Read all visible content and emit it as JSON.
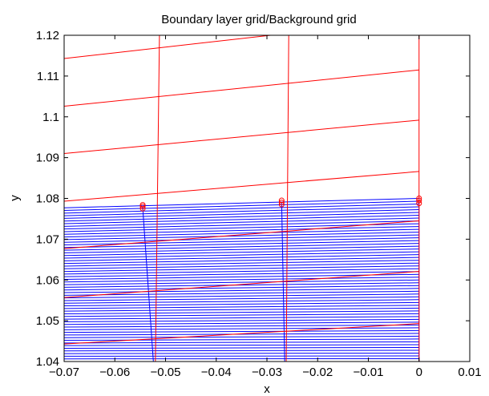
{
  "chart_data": {
    "type": "line",
    "title": "Boundary layer grid/Background grid",
    "xlabel": "x",
    "ylabel": "y",
    "xlim": [
      -0.07,
      0.01
    ],
    "ylim": [
      1.04,
      1.12
    ],
    "x_ticks": [
      "−0.07",
      "−0.06",
      "−0.05",
      "−0.04",
      "−0.03",
      "−0.02",
      "−0.01",
      "0",
      "0.01"
    ],
    "x_tick_values": [
      -0.07,
      -0.06,
      -0.05,
      -0.04,
      -0.03,
      -0.02,
      -0.01,
      0,
      0.01
    ],
    "y_ticks": [
      "1.04",
      "1.05",
      "1.06",
      "1.07",
      "1.08",
      "1.09",
      "1.1",
      "1.11",
      "1.12"
    ],
    "y_tick_values": [
      1.04,
      1.05,
      1.06,
      1.07,
      1.08,
      1.09,
      1.1,
      1.11,
      1.12
    ],
    "grid": false,
    "series": [
      {
        "color": "#ff0000",
        "role": "background-grid-horizontal",
        "lines": [
          [
            [
              -0.07,
              1.0443
            ],
            [
              0,
              1.0493
            ]
          ],
          [
            [
              -0.07,
              1.0557
            ],
            [
              0,
              1.0621
            ]
          ],
          [
            [
              -0.07,
              1.0677
            ],
            [
              0,
              1.0745
            ]
          ],
          [
            [
              -0.07,
              1.0793
            ],
            [
              0,
              1.0866
            ]
          ],
          [
            [
              -0.07,
              1.091
            ],
            [
              0,
              1.0992
            ]
          ],
          [
            [
              -0.07,
              1.1026
            ],
            [
              0,
              1.1115
            ]
          ],
          [
            [
              -0.07,
              1.1143
            ],
            [
              0,
              1.1241
            ]
          ]
        ]
      },
      {
        "color": "#ff0000",
        "role": "background-grid-vertical",
        "lines": [
          [
            [
              -0.052,
              1.04
            ],
            [
              -0.0512,
              1.12
            ]
          ],
          [
            [
              -0.0262,
              1.04
            ],
            [
              -0.0257,
              1.12
            ]
          ],
          [
            [
              0.0,
              1.04
            ],
            [
              0.0,
              1.12
            ]
          ]
        ]
      },
      {
        "color": "#0000ff",
        "role": "boundary-layer-grid",
        "x_left": -0.07,
        "x_right": 0,
        "layers": 58,
        "y_bottom_left": 1.04,
        "y_bottom_right": 1.04,
        "y_top_left": 1.0777,
        "y_top_right": 1.08,
        "verticals": [
          [
            [
              -0.0545,
              1.0777
            ],
            [
              -0.0524,
              1.04
            ]
          ],
          [
            [
              -0.0271,
              1.079
            ],
            [
              -0.0265,
              1.04
            ]
          ],
          [
            [
              0.0,
              1.08
            ],
            [
              0.0,
              1.04
            ]
          ]
        ]
      },
      {
        "color": "#ff0000",
        "role": "markers",
        "marker": "circle",
        "points": [
          [
            -0.0545,
            1.0784
          ],
          [
            -0.0545,
            1.078
          ],
          [
            -0.0545,
            1.0775
          ],
          [
            -0.0271,
            1.0795
          ],
          [
            -0.0271,
            1.079
          ],
          [
            -0.0271,
            1.0785
          ],
          [
            0.0,
            1.08
          ],
          [
            0.0,
            1.0795
          ],
          [
            0.0,
            1.0788
          ]
        ]
      }
    ]
  }
}
